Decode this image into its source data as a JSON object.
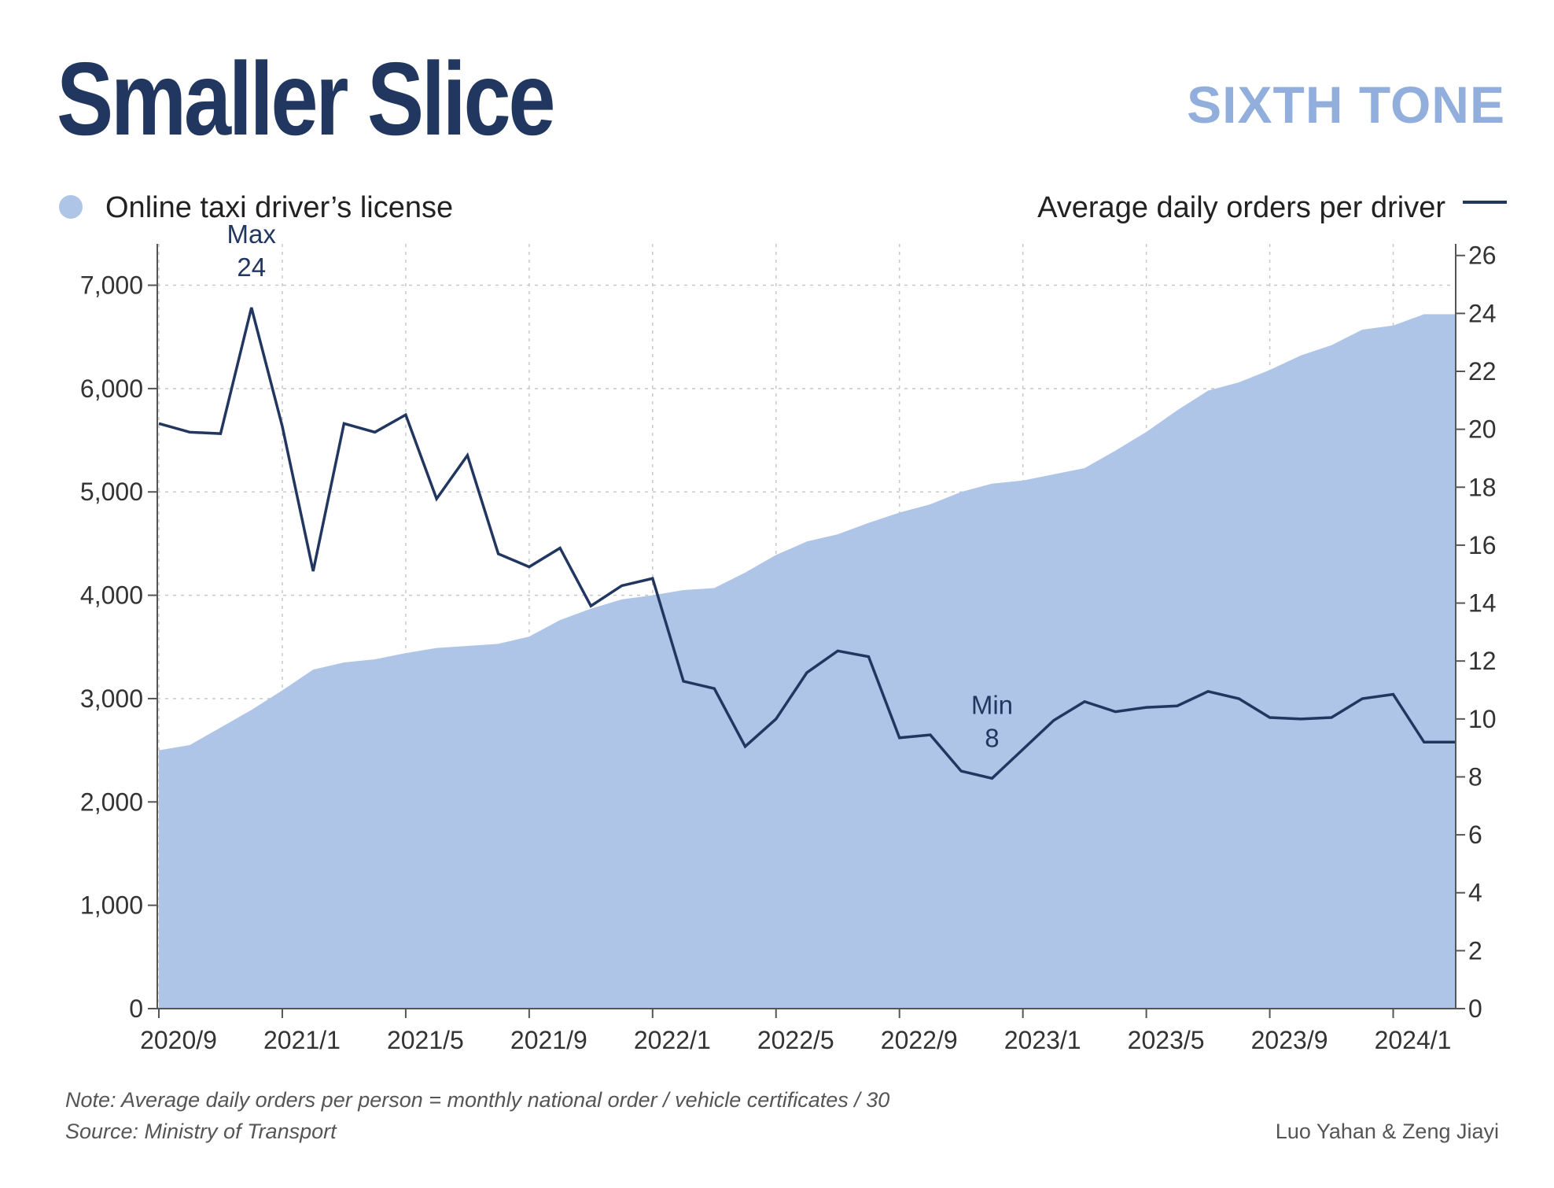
{
  "header": {
    "title": "Smaller Slice",
    "brand": "SIXTH TONE"
  },
  "footer": {
    "note": "Note: Average daily orders per person = monthly national order / vehicle certificates / 30",
    "source": "Source: Ministry of Transport",
    "credit": "Luo Yahan & Zeng Jiayi"
  },
  "colors": {
    "title": "#223760",
    "brand": "#91aedc",
    "area": "#afc5e7",
    "line": "#223760",
    "grid": "#c8c8c8",
    "axis": "#555555"
  },
  "chart_data": {
    "type": "area+line",
    "title": "Smaller Slice",
    "x_tick_labels": [
      "2020/9",
      "2021/1",
      "2021/5",
      "2021/9",
      "2022/1",
      "2022/5",
      "2022/9",
      "2023/1",
      "2023/5",
      "2023/9",
      "2024/1"
    ],
    "x_tick_indices": [
      0,
      4,
      8,
      12,
      16,
      20,
      24,
      28,
      32,
      36,
      40
    ],
    "left_axis": {
      "ylim": [
        0,
        7400
      ],
      "ticks": [
        0,
        1000,
        2000,
        3000,
        4000,
        5000,
        6000,
        7000
      ],
      "tick_labels": [
        "0",
        "1,000",
        "2,000",
        "3,000",
        "4,000",
        "5,000",
        "6,000",
        "7,000"
      ]
    },
    "right_axis": {
      "ylim": [
        0,
        26.4
      ],
      "ticks": [
        0,
        2,
        4,
        6,
        8,
        10,
        12,
        14,
        16,
        18,
        20,
        22,
        24,
        26
      ],
      "tick_labels": [
        "0",
        "2",
        "4",
        "6",
        "8",
        "10",
        "12",
        "14",
        "16",
        "18",
        "20",
        "22",
        "24",
        "26"
      ]
    },
    "series": [
      {
        "name": "Online taxi driver’s license",
        "kind": "area",
        "axis": "left",
        "values": [
          2500,
          2550,
          2720,
          2890,
          3080,
          3280,
          3350,
          3380,
          3440,
          3490,
          3510,
          3530,
          3600,
          3760,
          3870,
          3960,
          4000,
          4050,
          4070,
          4220,
          4390,
          4520,
          4590,
          4700,
          4800,
          4880,
          5000,
          5080,
          5110,
          5170,
          5230,
          5400,
          5580,
          5790,
          5980,
          6060,
          6180,
          6320,
          6420,
          6570,
          6610,
          6720,
          6720
        ]
      },
      {
        "name": "Average daily orders per driver",
        "kind": "line",
        "axis": "right",
        "values": [
          20.2,
          19.9,
          19.85,
          24.2,
          20.1,
          15.1,
          20.2,
          19.9,
          20.5,
          17.6,
          19.1,
          15.7,
          15.25,
          15.9,
          13.9,
          14.6,
          14.85,
          11.3,
          11.05,
          9.05,
          10.0,
          11.6,
          12.35,
          12.15,
          9.35,
          9.45,
          8.2,
          7.95,
          8.95,
          9.95,
          10.6,
          10.25,
          10.4,
          10.45,
          10.95,
          10.7,
          10.05,
          10.0,
          10.05,
          10.7,
          10.85,
          9.2,
          9.2
        ]
      }
    ],
    "legend": {
      "left": "Online taxi driver’s license",
      "right": "Average daily orders per driver"
    },
    "annotations": [
      {
        "label": "Max",
        "value": "24",
        "index": 3
      },
      {
        "label": "Min",
        "value": "8",
        "index": 27
      }
    ],
    "grid": true
  }
}
